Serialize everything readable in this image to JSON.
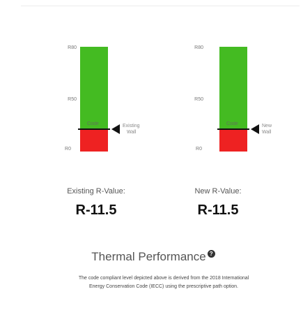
{
  "gauges": [
    {
      "id": "existing",
      "ticks": {
        "top": "R80",
        "middle": "R50",
        "bottom": "R0"
      },
      "code_label": "Code",
      "pointer_label_line1": "Existing",
      "pointer_label_line2": "Wall",
      "value_title": "Existing R-Value:",
      "value": "R-11.5"
    },
    {
      "id": "new",
      "ticks": {
        "top": "R80",
        "middle": "R50",
        "bottom": "R0"
      },
      "code_label": "Code",
      "pointer_label_line1": "New",
      "pointer_label_line2": "Wall",
      "value_title": "New R-Value:",
      "value": "R-11.5"
    }
  ],
  "colors": {
    "above_code": "#44bb22",
    "below_code": "#ee2222",
    "marker": "#111111"
  },
  "performance": {
    "title": "Thermal Performance",
    "help_icon": "question-circle-icon",
    "note_line1": "The code compliant level depicted above is derived from the 2018 International",
    "note_line2": "Energy Conservation Code (IECC) using the prescriptive path option."
  }
}
